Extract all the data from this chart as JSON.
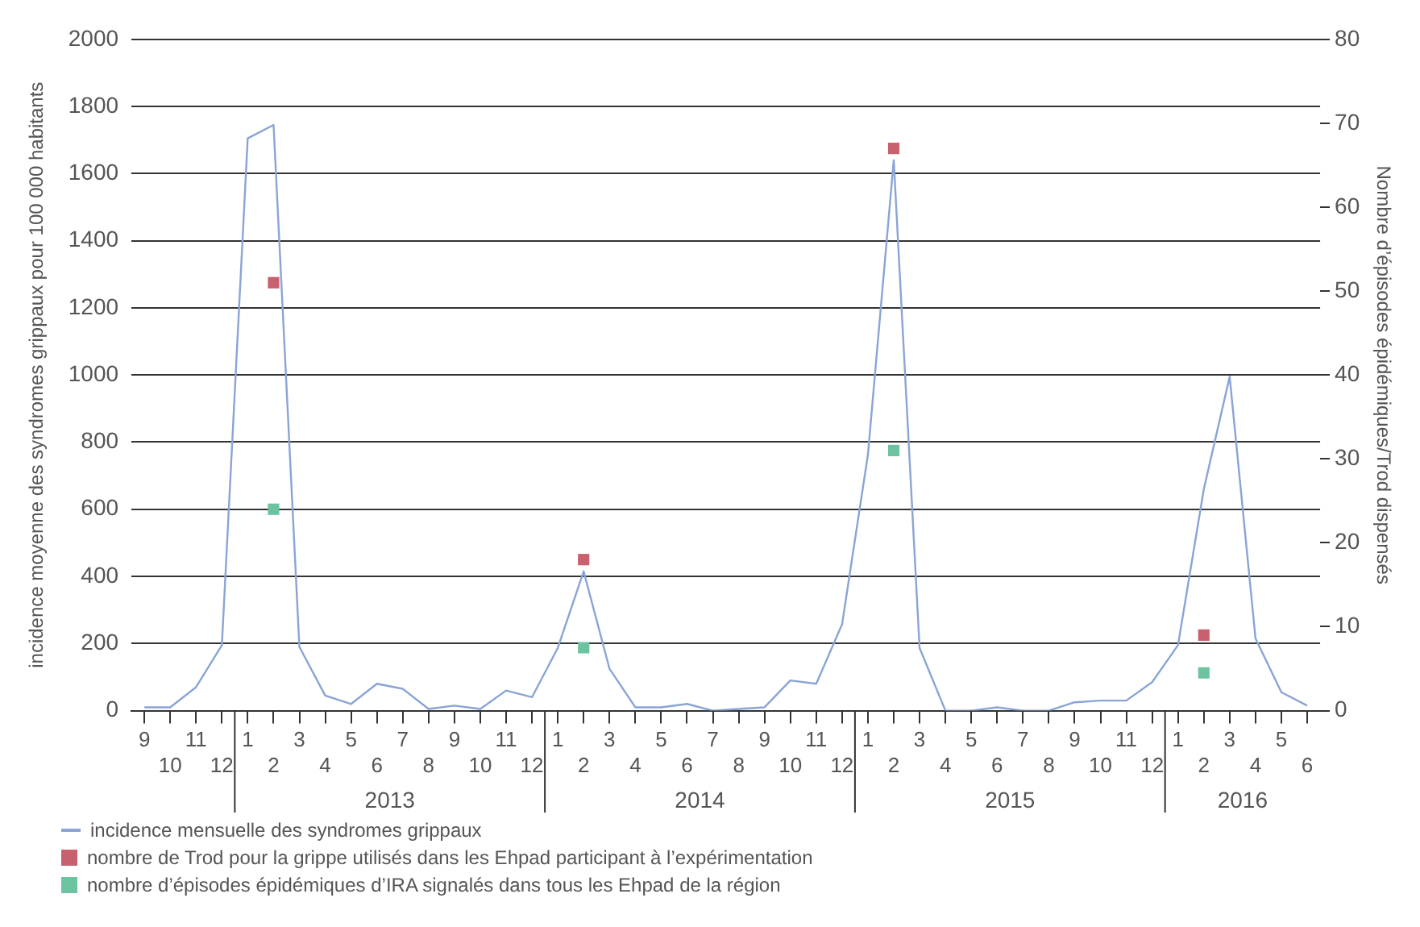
{
  "chart_data": {
    "type": "line",
    "ylabel": "incidence moyenne des syndromes grippaux pour 100 000 habitants",
    "y2label": "Nombre d’épisodes épidémiques/Trod dispensés",
    "categories": [
      "9",
      "10",
      "11",
      "12",
      "1",
      "2",
      "3",
      "4",
      "5",
      "6",
      "7",
      "8",
      "9",
      "10",
      "11",
      "12",
      "1",
      "2",
      "3",
      "4",
      "5",
      "6",
      "7",
      "8",
      "9",
      "10",
      "11",
      "12",
      "1",
      "2",
      "3",
      "4",
      "5",
      "6",
      "7",
      "8",
      "9",
      "10",
      "11",
      "12",
      "1",
      "2",
      "3",
      "4",
      "5",
      "6"
    ],
    "series": [
      {
        "name": "incidence mensuelle des syndromes grippaux",
        "marker": "none",
        "color": "#8aa4d6",
        "values": [
          10,
          10,
          70,
          195,
          1705,
          1745,
          190,
          45,
          20,
          80,
          65,
          5,
          15,
          5,
          60,
          40,
          187,
          415,
          125,
          10,
          10,
          20,
          0,
          5,
          10,
          90,
          80,
          257,
          762,
          1640,
          187,
          0,
          0,
          10,
          0,
          0,
          25,
          30,
          30,
          85,
          195,
          660,
          995,
          215,
          55,
          15
        ]
      },
      {
        "name": "nombre de Trod pour la grippe utilisés dans les Ehpad participant à l’expérimentation",
        "type": "scatter",
        "marker": "square",
        "axis": "y2",
        "color": "#c8606e",
        "values": [
          null,
          null,
          null,
          null,
          null,
          51,
          null,
          null,
          null,
          null,
          null,
          null,
          null,
          null,
          null,
          null,
          null,
          18,
          null,
          null,
          null,
          null,
          null,
          null,
          null,
          null,
          null,
          null,
          null,
          67,
          null,
          null,
          null,
          null,
          null,
          null,
          null,
          null,
          null,
          null,
          null,
          9,
          null,
          null,
          null,
          null
        ]
      },
      {
        "name": "nombre d’épisodes épidémiques d’IRA signalés dans tous les Ehpad de la région",
        "type": "scatter",
        "marker": "square",
        "axis": "y2",
        "color": "#6cc3a0",
        "values": [
          null,
          null,
          null,
          null,
          null,
          24,
          null,
          null,
          null,
          null,
          null,
          null,
          null,
          null,
          null,
          null,
          null,
          7.5,
          null,
          null,
          null,
          null,
          null,
          null,
          null,
          null,
          null,
          null,
          null,
          31,
          null,
          null,
          null,
          null,
          null,
          null,
          null,
          null,
          null,
          null,
          null,
          4.5,
          null,
          null,
          null,
          null
        ]
      }
    ],
    "ylim": [
      0,
      2000
    ],
    "yticks": [
      0,
      200,
      400,
      600,
      800,
      1000,
      1200,
      1400,
      1600,
      1800,
      2000
    ],
    "y2lim": [
      0,
      80
    ],
    "y2ticks": [
      0,
      10,
      20,
      30,
      40,
      50,
      60,
      70,
      80
    ],
    "annotations": [
      "2013",
      "2014",
      "2015",
      "2016"
    ],
    "grid": "y",
    "legend": "bottom",
    "line_style": "solid"
  }
}
